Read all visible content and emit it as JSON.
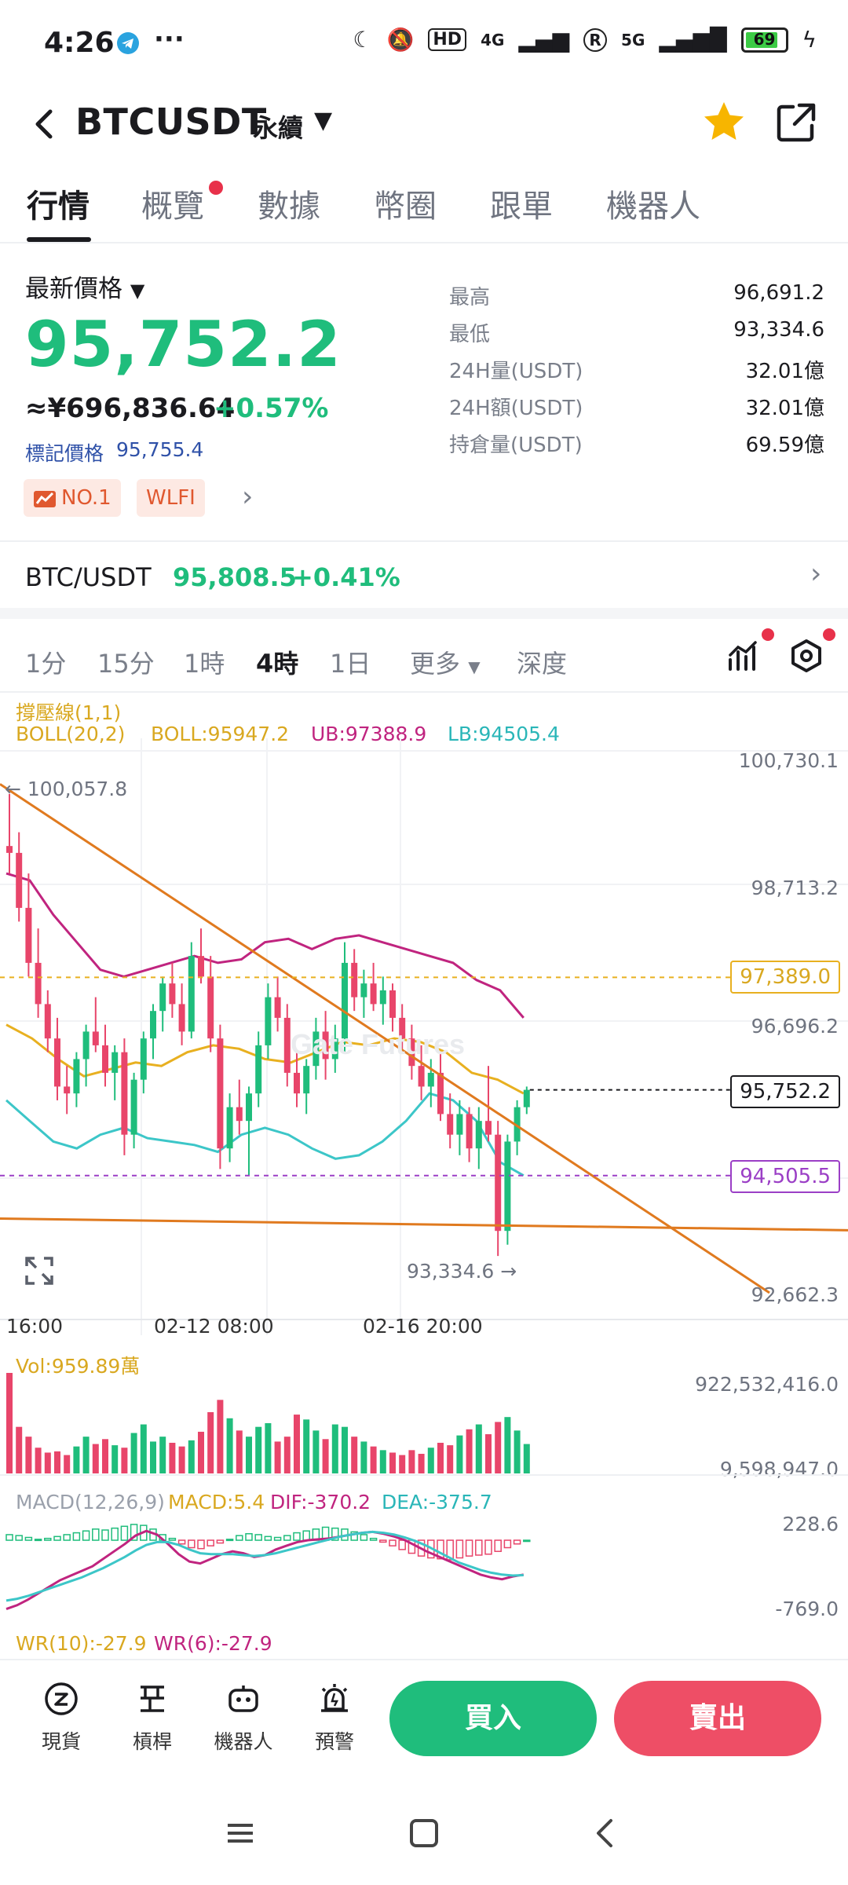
{
  "status_bar": {
    "time": "4:26",
    "hd": "HD",
    "net1": "4G",
    "net2": "5G",
    "battery": "69"
  },
  "header": {
    "pair": "BTCUSDT",
    "suffix": "永續",
    "caret": "▼"
  },
  "tabs": [
    "行情",
    "概覽",
    "數據",
    "幣圈",
    "跟單",
    "機器人"
  ],
  "price_panel": {
    "label": "最新價格",
    "caret": "▼",
    "last_price": "95,752.2",
    "cny_price": "≈¥696,836.64",
    "change": "+0.57%",
    "mark_label": "標記價格",
    "mark_price": "95,755.4",
    "tags": [
      "NO.1",
      "WLFI"
    ]
  },
  "stats": [
    {
      "label": "最高",
      "value": "96,691.2"
    },
    {
      "label": "最低",
      "value": "93,334.6"
    },
    {
      "label": "24H量(USDT)",
      "value": "32.01億"
    },
    {
      "label": "24H額(USDT)",
      "value": "32.01億"
    },
    {
      "label": "持倉量(USDT)",
      "value": "69.59億"
    }
  ],
  "spot": {
    "name": "BTC/USDT",
    "price": "95,808.5",
    "change": "+0.41%"
  },
  "intervals": [
    "1分",
    "15分",
    "1時",
    "4時",
    "1日",
    "更多",
    "深度"
  ],
  "indicators": {
    "sr": "撐壓線(1,1)",
    "boll": "BOLL(20,2)",
    "boll_val": "BOLL:95947.2",
    "ub": "UB:97388.9",
    "lb": "LB:94505.4",
    "vol": "Vol:959.89萬",
    "macd": "MACD(12,26,9)",
    "macd_val": "MACD:5.4",
    "dif": "DIF:-370.2",
    "dea": "DEA:-375.7",
    "wr10": "WR(10):-27.9",
    "wr6": "WR(6):-27.9"
  },
  "chart_axis": {
    "y_labels": [
      "100,730.1",
      "98,713.2",
      "96,696.2",
      "92,662.3"
    ],
    "high_mark": "← 100,057.8",
    "low_mark": "93,334.6 →",
    "ub_box": "97,389.0",
    "last_box": "95,752.2",
    "lb_box": "94,505.5",
    "x_labels": [
      "16:00",
      "02-12 08:00",
      "02-16 20:00"
    ],
    "vol_labels": [
      "922,532,416.0",
      "9,598,947.0"
    ],
    "macd_labels": [
      "228.6",
      "-769.0"
    ]
  },
  "chart_data": {
    "type": "candlestick",
    "ylim": [
      92662.3,
      100730.1
    ],
    "high": 100057.8,
    "low": 93334.6,
    "last": 95752.2,
    "boll_ub": 97389.0,
    "boll_lb": 94505.5,
    "candles": [
      [
        99300,
        100057.8,
        98900,
        99200
      ],
      [
        99200,
        99500,
        98200,
        98400
      ],
      [
        98400,
        98900,
        97400,
        97600
      ],
      [
        97600,
        98100,
        96800,
        97000
      ],
      [
        97000,
        97200,
        96300,
        96500
      ],
      [
        96500,
        96800,
        95600,
        95800
      ],
      [
        95800,
        96100,
        95400,
        95700
      ],
      [
        95700,
        96300,
        95500,
        96200
      ],
      [
        96200,
        96700,
        95800,
        96600
      ],
      [
        96600,
        97100,
        96300,
        96400
      ],
      [
        96400,
        96700,
        95800,
        96000
      ],
      [
        96000,
        96400,
        95600,
        96300
      ],
      [
        96300,
        96500,
        94800,
        95100
      ],
      [
        95100,
        96000,
        94900,
        95900
      ],
      [
        95900,
        96600,
        95700,
        96500
      ],
      [
        96500,
        97000,
        96200,
        96900
      ],
      [
        96900,
        97400,
        96600,
        97300
      ],
      [
        97300,
        97600,
        96800,
        97000
      ],
      [
        97000,
        97300,
        96400,
        96600
      ],
      [
        96600,
        97900,
        96500,
        97700
      ],
      [
        97700,
        98100,
        97300,
        97400
      ],
      [
        97400,
        97700,
        96300,
        96500
      ],
      [
        96500,
        96700,
        94600,
        94900
      ],
      [
        94900,
        95700,
        94700,
        95500
      ],
      [
        95500,
        95900,
        95100,
        95300
      ],
      [
        95300,
        95800,
        94500,
        95700
      ],
      [
        95700,
        96600,
        95500,
        96400
      ],
      [
        96400,
        97300,
        96200,
        97100
      ],
      [
        97100,
        97400,
        96600,
        96800
      ],
      [
        96800,
        97000,
        95800,
        96000
      ],
      [
        96000,
        96300,
        95500,
        95700
      ],
      [
        95700,
        96200,
        95400,
        96100
      ],
      [
        96100,
        96800,
        95900,
        96600
      ],
      [
        96600,
        96900,
        95900,
        96200
      ],
      [
        96200,
        96700,
        96000,
        96500
      ],
      [
        96500,
        97900,
        96300,
        97600
      ],
      [
        97600,
        97800,
        96900,
        97100
      ],
      [
        97100,
        97500,
        96800,
        97300
      ],
      [
        97300,
        97600,
        96900,
        97000
      ],
      [
        97000,
        97400,
        96700,
        97200
      ],
      [
        97200,
        97300,
        96600,
        96800
      ],
      [
        96800,
        97000,
        96300,
        96500
      ],
      [
        96500,
        96700,
        95900,
        96100
      ],
      [
        96100,
        96400,
        95600,
        95800
      ],
      [
        95800,
        96200,
        95500,
        96000
      ],
      [
        96000,
        96300,
        95300,
        95400
      ],
      [
        95400,
        95700,
        94900,
        95100
      ],
      [
        95100,
        95600,
        94800,
        95400
      ],
      [
        95400,
        95500,
        94700,
        94900
      ],
      [
        94900,
        95500,
        94600,
        95300
      ],
      [
        95300,
        96100,
        95000,
        95100
      ],
      [
        95100,
        95300,
        93334.6,
        93700
      ],
      [
        93700,
        95100,
        93500,
        95000
      ],
      [
        95000,
        95600,
        94800,
        95500
      ],
      [
        95500,
        95800,
        95400,
        95752.2
      ]
    ],
    "boll_upper": [
      98900,
      98800,
      98300,
      97900,
      97500,
      97400,
      97500,
      97600,
      97700,
      97600,
      97650,
      97900,
      97950,
      97800,
      97950,
      98000,
      97900,
      97800,
      97700,
      97600,
      97350,
      97200,
      96800
    ],
    "boll_mid": [
      96700,
      96500,
      96200,
      95950,
      96050,
      96150,
      96100,
      96300,
      96400,
      96350,
      96200,
      96150,
      96300,
      96450,
      96400,
      96500,
      96450,
      96300,
      96000,
      95900,
      95700
    ],
    "boll_lower": [
      95600,
      95300,
      95000,
      94900,
      95100,
      95200,
      95050,
      95000,
      94950,
      94850,
      95100,
      95200,
      95100,
      94900,
      94750,
      94800,
      95000,
      95300,
      95700,
      95600,
      95300,
      94700,
      94505.5
    ],
    "volume_ylim": [
      0,
      922532416
    ],
    "volumes": [
      820,
      380,
      300,
      210,
      170,
      180,
      150,
      220,
      300,
      240,
      280,
      230,
      210,
      330,
      400,
      260,
      300,
      250,
      220,
      270,
      340,
      500,
      600,
      450,
      350,
      300,
      380,
      410,
      260,
      300,
      480,
      440,
      350,
      280,
      400,
      380,
      300,
      260,
      220,
      190,
      170,
      150,
      190,
      160,
      210,
      250,
      230,
      310,
      360,
      400,
      320,
      420,
      460,
      350,
      240
    ],
    "macd_ylim": [
      -769.0,
      228.6
    ],
    "macd_hist": [
      60,
      50,
      30,
      10,
      20,
      40,
      60,
      80,
      100,
      120,
      110,
      130,
      150,
      170,
      160,
      120,
      60,
      20,
      -40,
      -80,
      -90,
      -60,
      -30,
      10,
      50,
      70,
      60,
      40,
      30,
      50,
      80,
      100,
      120,
      140,
      130,
      120,
      90,
      60,
      20,
      -20,
      -60,
      -100,
      -140,
      -170,
      -190,
      -200,
      -210,
      -190,
      -170,
      -160,
      -150,
      -120,
      -80,
      -40,
      0
    ],
    "macd_dif": [
      -740,
      -700,
      -640,
      -570,
      -500,
      -430,
      -380,
      -330,
      -280,
      -200,
      -120,
      -40,
      50,
      100,
      60,
      -40,
      -150,
      -230,
      -250,
      -200,
      -150,
      -120,
      -140,
      -180,
      -160,
      -100,
      -60,
      -20,
      0,
      10,
      20,
      40,
      60,
      80,
      90,
      70,
      40,
      0,
      -60,
      -120,
      -170,
      -220,
      -270,
      -320,
      -370,
      -400,
      -420,
      -390,
      -370
    ],
    "macd_dea": [
      -650,
      -630,
      -600,
      -560,
      -520,
      -480,
      -440,
      -400,
      -350,
      -300,
      -240,
      -180,
      -110,
      -50,
      -20,
      -20,
      -50,
      -100,
      -140,
      -150,
      -150,
      -150,
      -160,
      -170,
      -160,
      -140,
      -110,
      -80,
      -50,
      -20,
      10,
      40,
      60,
      80,
      90,
      80,
      60,
      30,
      -10,
      -60,
      -120,
      -180,
      -240,
      -280,
      -320,
      -350,
      -370,
      -380,
      -375.7
    ]
  },
  "bottom_nav": {
    "items": [
      "現貨",
      "槓桿",
      "機器人",
      "預警"
    ],
    "buy": "買入",
    "sell": "賣出"
  },
  "colors": {
    "up": "#1fbd7c",
    "down": "#e8456a",
    "boll_upper": "#c0247f",
    "boll_mid": "#e8b020",
    "boll_lower": "#3cc6c8",
    "trendline": "#e07a1f"
  }
}
